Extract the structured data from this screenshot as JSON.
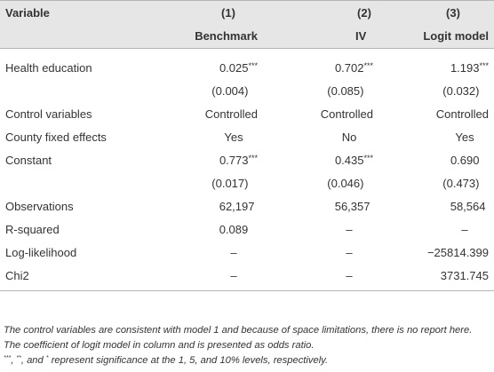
{
  "table": {
    "header": {
      "variable_label": "Variable",
      "columns": [
        {
          "number": "(1)",
          "name": "Benchmark"
        },
        {
          "number": "(2)",
          "name": "IV"
        },
        {
          "number": "(3)",
          "name": "Logit model"
        }
      ]
    },
    "rows": {
      "health_education": {
        "label": "Health education",
        "values": [
          "0.025",
          "0.702",
          "1.193"
        ],
        "stars": [
          "***",
          "***",
          "***"
        ]
      },
      "health_education_se": {
        "values": [
          "(0.004)",
          "(0.085)",
          "(0.032)"
        ]
      },
      "control_variables": {
        "label": "Control variables",
        "values": [
          "Controlled",
          "Controlled",
          "Controlled"
        ]
      },
      "county_fixed_effects": {
        "label": "County fixed effects",
        "values": [
          "Yes",
          "No",
          "Yes"
        ]
      },
      "constant": {
        "label": "Constant",
        "values": [
          "0.773",
          "0.435",
          "0.690"
        ],
        "stars": [
          "***",
          "***",
          ""
        ]
      },
      "constant_se": {
        "values": [
          "(0.017)",
          "(0.046)",
          "(0.473)"
        ]
      },
      "observations": {
        "label": "Observations",
        "values": [
          "62,197",
          "56,357",
          "58,564"
        ]
      },
      "r_squared": {
        "label": "R-squared",
        "values": [
          "0.089",
          "–",
          "–"
        ]
      },
      "log_likelihood": {
        "label": "Log-likelihood",
        "values": [
          "–",
          "–",
          "−25814.399"
        ]
      },
      "chi2": {
        "label": "Chi2",
        "values": [
          "–",
          "–",
          "3731.745"
        ]
      }
    }
  },
  "footnote": {
    "line1": "The control variables are consistent with model 1 and because of space limitations, there is no report here. The coefficient of logit model in column and is presented as odds ratio.",
    "sig_three": "***",
    "sep1": ", ",
    "sig_two": "**",
    "sep2": ", and ",
    "sig_one": "*",
    "line2_tail": " represent significance at the 1, 5, and 10% levels, respectively."
  }
}
